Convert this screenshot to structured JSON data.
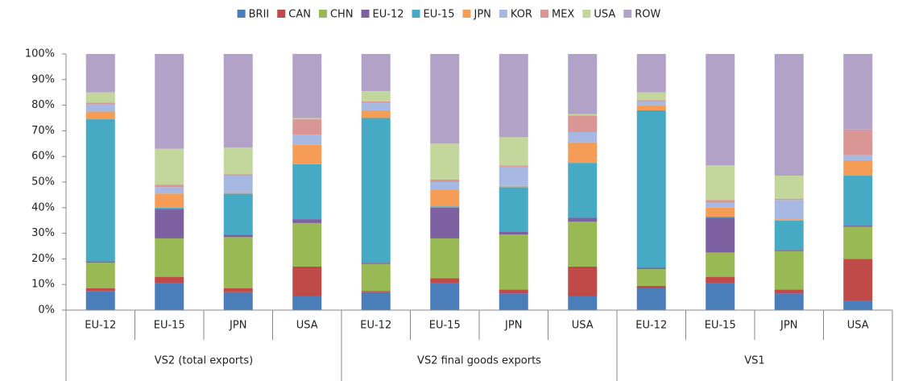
{
  "chart_data": {
    "type": "stacked_bar",
    "categories": [
      "EU-12",
      "EU-15",
      "JPN",
      "USA",
      "EU-12",
      "EU-15",
      "JPN",
      "USA",
      "EU-12",
      "EU-15",
      "JPN",
      "USA"
    ],
    "groups": [
      {
        "name": "VS2 (total exports)",
        "size": 4
      },
      {
        "name": "VS2 final goods exports",
        "size": 4
      },
      {
        "name": "VS1",
        "size": 4
      }
    ],
    "series": [
      {
        "name": "BRII",
        "color": "#4a7ebb",
        "values": [
          7.5,
          10.5,
          7,
          5.5,
          7,
          10.5,
          6.5,
          5.5,
          8.5,
          10.5,
          6.5,
          3.5
        ]
      },
      {
        "name": "CAN",
        "color": "#be4b48",
        "values": [
          1,
          2.5,
          1.5,
          11.5,
          0.5,
          2,
          1.5,
          11.5,
          1,
          2.5,
          1.5,
          16.5
        ]
      },
      {
        "name": "CHN",
        "color": "#98b954",
        "values": [
          10,
          15,
          20,
          17,
          10.5,
          15.5,
          21.5,
          17.5,
          6.5,
          9.5,
          15,
          12.5
        ]
      },
      {
        "name": "EU-12",
        "color": "#7d60a0",
        "values": [
          0.5,
          11.5,
          1,
          1.5,
          0.5,
          12,
          1,
          1.5,
          0.5,
          13.5,
          0.5,
          0.5
        ]
      },
      {
        "name": "EU-15",
        "color": "#46aac5",
        "values": [
          55.5,
          0.5,
          16,
          21.5,
          56.5,
          0.5,
          17.5,
          21.5,
          61.5,
          0.5,
          11.5,
          19.5
        ]
      },
      {
        "name": "JPN",
        "color": "#f59d56",
        "values": [
          3,
          5.5,
          0.5,
          7.5,
          3,
          6.5,
          0.5,
          8,
          2,
          3.5,
          0.5,
          6
        ]
      },
      {
        "name": "KOR",
        "color": "#a7b9e3",
        "values": [
          3,
          2.5,
          6.5,
          4,
          3,
          3,
          7.5,
          4,
          1.5,
          2,
          7.5,
          2
        ]
      },
      {
        "name": "MEX",
        "color": "#d99694",
        "values": [
          0.5,
          1,
          0.5,
          6,
          0.5,
          1,
          0.5,
          6.5,
          0.5,
          1,
          0.5,
          10
        ]
      },
      {
        "name": "USA",
        "color": "#c3d69b",
        "values": [
          4,
          14,
          10.5,
          0.5,
          4,
          14,
          11,
          0.5,
          3,
          13.5,
          9,
          0
        ]
      },
      {
        "name": "ROW",
        "color": "#b3a2c7",
        "values": [
          15,
          37,
          36.5,
          25,
          14.5,
          35,
          32.5,
          23.5,
          15,
          43.5,
          47.5,
          29.5
        ]
      }
    ],
    "ylim": [
      0,
      100
    ],
    "yticks": [
      {
        "value": 0,
        "label": "0%"
      },
      {
        "value": 10,
        "label": "10%"
      },
      {
        "value": 20,
        "label": "20%"
      },
      {
        "value": 30,
        "label": "30%"
      },
      {
        "value": 40,
        "label": "40%"
      },
      {
        "value": 50,
        "label": "50%"
      },
      {
        "value": 60,
        "label": "60%"
      },
      {
        "value": 70,
        "label": "70%"
      },
      {
        "value": 80,
        "label": "80%"
      },
      {
        "value": 90,
        "label": "90%"
      },
      {
        "value": 100,
        "label": "100%"
      }
    ],
    "grid": false,
    "legend": "top"
  }
}
